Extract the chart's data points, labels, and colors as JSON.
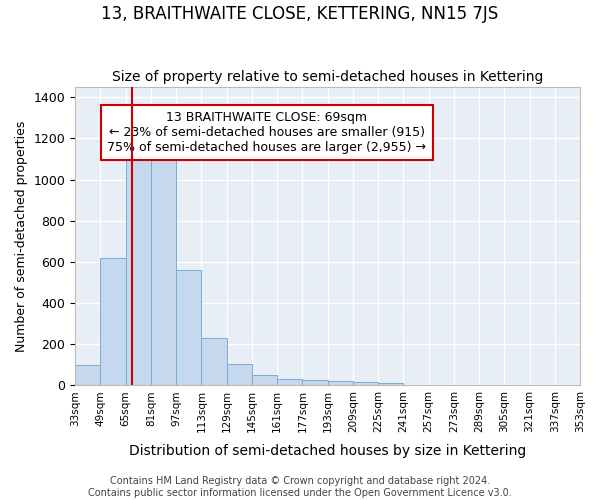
{
  "title": "13, BRAITHWAITE CLOSE, KETTERING, NN15 7JS",
  "subtitle": "Size of property relative to semi-detached houses in Kettering",
  "xlabel": "Distribution of semi-detached houses by size in Kettering",
  "ylabel": "Number of semi-detached properties",
  "bin_edges": [
    33,
    49,
    65,
    81,
    97,
    113,
    129,
    145,
    161,
    177,
    193,
    209,
    225,
    241,
    257,
    273,
    289,
    305,
    321,
    337,
    353
  ],
  "bar_heights": [
    100,
    620,
    1130,
    1125,
    560,
    230,
    105,
    50,
    30,
    25,
    20,
    15,
    10,
    0,
    0,
    0,
    0,
    0,
    0,
    0
  ],
  "bar_color": "#c5d8ee",
  "bar_edge_color": "#7aadd4",
  "bg_color": "#e8eef6",
  "fig_bg_color": "#ffffff",
  "grid_color": "#ffffff",
  "property_size": 69,
  "vline_color": "#cc0000",
  "annotation_title": "13 BRAITHWAITE CLOSE: 69sqm",
  "annotation_line2": "← 23% of semi-detached houses are smaller (915)",
  "annotation_line3": "75% of semi-detached houses are larger (2,955) →",
  "annotation_box_color": "#ffffff",
  "annotation_border_color": "#cc0000",
  "ylim": [
    0,
    1450
  ],
  "yticks": [
    0,
    200,
    400,
    600,
    800,
    1000,
    1200,
    1400
  ],
  "footer_line1": "Contains HM Land Registry data © Crown copyright and database right 2024.",
  "footer_line2": "Contains public sector information licensed under the Open Government Licence v3.0.",
  "title_fontsize": 12,
  "subtitle_fontsize": 10,
  "xlabel_fontsize": 10,
  "ylabel_fontsize": 9,
  "annotation_fontsize": 9,
  "footer_fontsize": 7
}
